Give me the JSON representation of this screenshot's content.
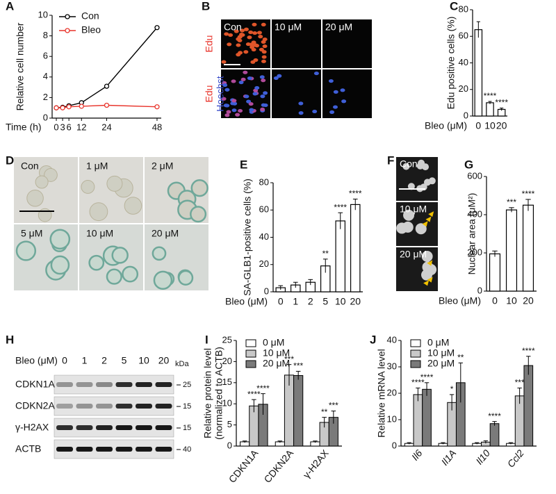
{
  "chart_data": [
    {
      "label": "A",
      "type": "line",
      "y_label": [
        "Relative cell number"
      ],
      "x_label": "Time (h)",
      "x": [
        0,
        3,
        6,
        12,
        24,
        48
      ],
      "xlim": [
        -2,
        50
      ],
      "xticks": [
        0,
        3,
        6,
        12,
        24,
        48
      ],
      "ylim": [
        0,
        10
      ],
      "yticks": [
        0,
        2,
        4,
        6,
        8,
        10
      ],
      "legend": "upper left",
      "series": [
        {
          "name": "Con",
          "color": "#000000",
          "values": [
            1,
            1.05,
            1.2,
            1.5,
            3.1,
            8.8
          ]
        },
        {
          "name": "Bleo",
          "color": "#e8332a",
          "values": [
            1,
            1,
            1.1,
            1.15,
            1.25,
            1.1
          ]
        }
      ]
    },
    {
      "label": "C",
      "type": "bar",
      "y_label": [
        "Edu positive cells (%)"
      ],
      "x_label": "Bleo (μM)",
      "categories": [
        "0",
        "10",
        "20"
      ],
      "values": [
        65,
        10,
        5
      ],
      "errors": [
        6,
        1,
        1
      ],
      "significance": [
        null,
        "****",
        "****"
      ],
      "ylim": [
        0,
        80
      ],
      "yticks": [
        0,
        20,
        40,
        60,
        80
      ]
    },
    {
      "label": "E",
      "type": "bar",
      "y_label": [
        "SA-GLB1-positive cells (%)"
      ],
      "x_label": "Bleo (μM)",
      "categories": [
        "0",
        "1",
        "2",
        "5",
        "10",
        "20"
      ],
      "values": [
        3,
        5,
        7,
        19,
        52,
        64
      ],
      "errors": [
        1.5,
        2,
        2,
        5,
        6,
        4
      ],
      "significance": [
        null,
        null,
        null,
        "**",
        "****",
        "****"
      ],
      "ylim": [
        0,
        80
      ],
      "yticks": [
        0,
        20,
        40,
        60,
        80
      ]
    },
    {
      "label": "G",
      "type": "bar",
      "y_label": [
        "Nuclear area (μM²)"
      ],
      "x_label": "Bleo (μM)",
      "categories": [
        "0",
        "10",
        "20"
      ],
      "values": [
        195,
        425,
        450
      ],
      "errors": [
        15,
        12,
        30
      ],
      "significance": [
        null,
        "***",
        "****"
      ],
      "ylim": [
        0,
        600
      ],
      "yticks": [
        0,
        200,
        400,
        600
      ]
    },
    {
      "label": "I",
      "type": "bar",
      "y_label": [
        "Relative protein level",
        "(normalized to ACTB)"
      ],
      "categories": [
        "CDKN1A",
        "CDKN2A",
        "γ-H2AX"
      ],
      "italic_categories": false,
      "ylim": [
        0,
        25
      ],
      "yticks": [
        0,
        5,
        10,
        15,
        20,
        25
      ],
      "legend": "upper left",
      "series": [
        {
          "name": "0 μM",
          "color": "#ffffff",
          "values": [
            1,
            1,
            1
          ],
          "errors": [
            0.2,
            0.2,
            0.2
          ],
          "significance": [
            null,
            null,
            null
          ]
        },
        {
          "name": "10 μM",
          "color": "#c8c8c8",
          "values": [
            9.5,
            16.8,
            5.6
          ],
          "errors": [
            1.5,
            2.5,
            1.2
          ],
          "significance": [
            "****",
            "***",
            "**"
          ]
        },
        {
          "name": "20 μM",
          "color": "#7a7a7a",
          "values": [
            9.9,
            16.7,
            6.8
          ],
          "errors": [
            2.5,
            1,
            1.5
          ],
          "significance": [
            "****",
            "***",
            "***"
          ]
        }
      ]
    },
    {
      "label": "J",
      "type": "bar",
      "y_label": [
        "Relative mRNA level"
      ],
      "categories": [
        "Il6",
        "Il1A",
        "Il10",
        "Ccl2"
      ],
      "italic_categories": true,
      "ylim": [
        0,
        40
      ],
      "yticks": [
        0,
        10,
        20,
        30,
        40
      ],
      "legend": "upper left",
      "series": [
        {
          "name": "0 μM",
          "color": "#ffffff",
          "values": [
            1,
            1,
            1,
            1
          ],
          "errors": [
            0.3,
            0.3,
            0.3,
            0.3
          ],
          "significance": [
            null,
            null,
            null,
            null
          ]
        },
        {
          "name": "10 μM",
          "color": "#c8c8c8",
          "values": [
            19.5,
            16.5,
            1.5,
            19
          ],
          "errors": [
            2.5,
            3,
            0.5,
            3
          ],
          "significance": [
            "****",
            "*",
            null,
            "***"
          ]
        },
        {
          "name": "20 μM",
          "color": "#7a7a7a",
          "values": [
            21.5,
            24,
            8.5,
            30.5
          ],
          "errors": [
            2.5,
            7.5,
            0.8,
            3.5
          ],
          "significance": [
            "****",
            "**",
            "****",
            "****"
          ]
        }
      ]
    }
  ],
  "image_panels": [
    {
      "label": "B",
      "columns": [
        "Con",
        "10 μM",
        "20 μM"
      ],
      "row_labels": [
        [
          "Edu"
        ],
        [
          "Edu",
          "Hoechst"
        ]
      ]
    },
    {
      "label": "D",
      "labels": [
        "Con",
        "1 μM",
        "2 μM",
        "5 μM",
        "10 μM",
        "20 μM"
      ]
    },
    {
      "label": "F",
      "labels": [
        "Con",
        "10 μM",
        "20 μM"
      ]
    }
  ],
  "blot": {
    "label": "H",
    "treatment": "Bleo (μM)",
    "lanes": [
      "0",
      "1",
      "2",
      "5",
      "10",
      "20"
    ],
    "unit": "kDa",
    "rows": [
      {
        "name": "CDKN1A",
        "marker": "25"
      },
      {
        "name": "CDKN2A",
        "marker": "15"
      },
      {
        "name": "γ-H2AX",
        "marker": "15"
      },
      {
        "name": "ACTB",
        "marker": "40"
      }
    ]
  }
}
